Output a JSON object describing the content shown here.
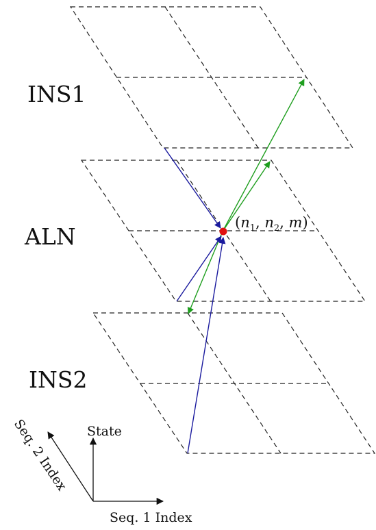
{
  "layers": [
    {
      "id": "ins1",
      "label": "INS1"
    },
    {
      "id": "aln",
      "label": "ALN"
    },
    {
      "id": "ins2",
      "label": "INS2"
    }
  ],
  "point_label": {
    "open": "(",
    "n": "n",
    "sub1": "1",
    "sep1": ", ",
    "sub2": "2",
    "sep2": ", ",
    "m": "m",
    "close": ")"
  },
  "axes": {
    "x_label": "Seq. 1 Index",
    "y_label": "State",
    "diag_label": "Seq. 2 Index"
  },
  "colors": {
    "grid": "#222222",
    "blue_arrow": "#1a1a9e",
    "green_arrow": "#1e9e1e",
    "point": "#e01010"
  }
}
